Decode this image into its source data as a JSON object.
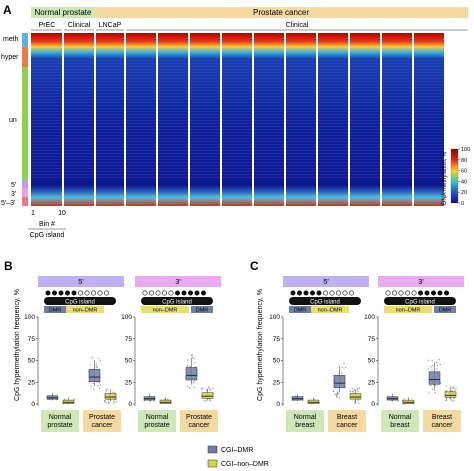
{
  "panels": {
    "a": "A",
    "b": "B",
    "c": "C"
  },
  "a": {
    "header": {
      "normal": "Normal prostate",
      "cancer": "Prostate cancer"
    },
    "subheader": {
      "prec": "PrEC",
      "clinical1": "Clinical",
      "lncap": "LNCaP",
      "clinical2": "Clinical"
    },
    "row_labels": {
      "meth": "meth",
      "hyper": "hyper",
      "un": "un",
      "five": "5'",
      "three": "3'",
      "both": "5'–3'"
    },
    "bin": {
      "start": "1",
      "end": "10",
      "label": "Bin #",
      "sublabel": "CpG island"
    },
    "colorbar": {
      "label": "DNA methylation, %",
      "ticks": [
        "100",
        "80",
        "60",
        "40",
        "20",
        "0"
      ]
    },
    "colors": {
      "header": "#f5d9a0",
      "normal_header": "#cfe6b7",
      "meth": "#5fb0e6",
      "hyper": "#ef7d43",
      "un": "#8ad34d",
      "five": "#b9a0ec",
      "three": "#e7a2e8",
      "both": "#e97a8c"
    }
  },
  "b": {
    "ylabel": "CpG hypermethylation frequency, %",
    "yticks": [
      "100",
      "75",
      "50",
      "25",
      "0"
    ],
    "sections": [
      {
        "title": "5'",
        "cpg": "CpG island",
        "dmr": "DMR",
        "non": "non–DMR"
      },
      {
        "title": "3'",
        "cpg": "CpG island",
        "dmr": "DMR",
        "non": "non–DMR"
      }
    ],
    "groups": [
      "Normal\nprostate",
      "Prostate\ncancer",
      "Normal\nprostate",
      "Prostate\ncancer"
    ]
  },
  "c": {
    "ylabel": "CpG hypermethylation frequency, %",
    "sections": [
      {
        "title": "5'",
        "cpg": "CpG island",
        "dmr": "DMR",
        "non": "non–DMR"
      },
      {
        "title": "3'",
        "cpg": "CpG island",
        "dmr": "DMR",
        "non": "non–DMR"
      }
    ],
    "groups": [
      "Normal\nbreast",
      "Breast\ncancer",
      "Normal\nbreast",
      "Breast\ncancer"
    ]
  },
  "legend": {
    "dmr": "CGI–DMR",
    "non": "CGI–non–DMR",
    "dmr_color": "#6d7fa6",
    "non_color": "#d6cf48"
  },
  "chart_data": [
    {
      "type": "box",
      "panel": "B",
      "section": "5'",
      "categories": [
        "Normal prostate",
        "Prostate cancer"
      ],
      "series": [
        {
          "name": "CGI–DMR",
          "median": [
            7,
            31
          ]
        },
        {
          "name": "CGI–non–DMR",
          "median": [
            2,
            8
          ]
        }
      ],
      "ylim": [
        0,
        100
      ]
    },
    {
      "type": "box",
      "panel": "B",
      "section": "3'",
      "categories": [
        "Normal prostate",
        "Prostate cancer"
      ],
      "series": [
        {
          "name": "CGI–DMR",
          "median": [
            6,
            33
          ]
        },
        {
          "name": "CGI–non–DMR",
          "median": [
            2,
            9
          ]
        }
      ],
      "ylim": [
        0,
        100
      ]
    },
    {
      "type": "box",
      "panel": "C",
      "section": "5'",
      "categories": [
        "Normal breast",
        "Breast cancer"
      ],
      "series": [
        {
          "name": "CGI–DMR",
          "median": [
            6,
            24
          ]
        },
        {
          "name": "CGI–non–DMR",
          "median": [
            2,
            8
          ]
        }
      ],
      "ylim": [
        0,
        100
      ]
    },
    {
      "type": "box",
      "panel": "C",
      "section": "3'",
      "categories": [
        "Normal breast",
        "Breast cancer"
      ],
      "series": [
        {
          "name": "CGI–DMR",
          "median": [
            6,
            28
          ]
        },
        {
          "name": "CGI–non–DMR",
          "median": [
            2,
            10
          ]
        }
      ],
      "ylim": [
        0,
        100
      ]
    }
  ]
}
